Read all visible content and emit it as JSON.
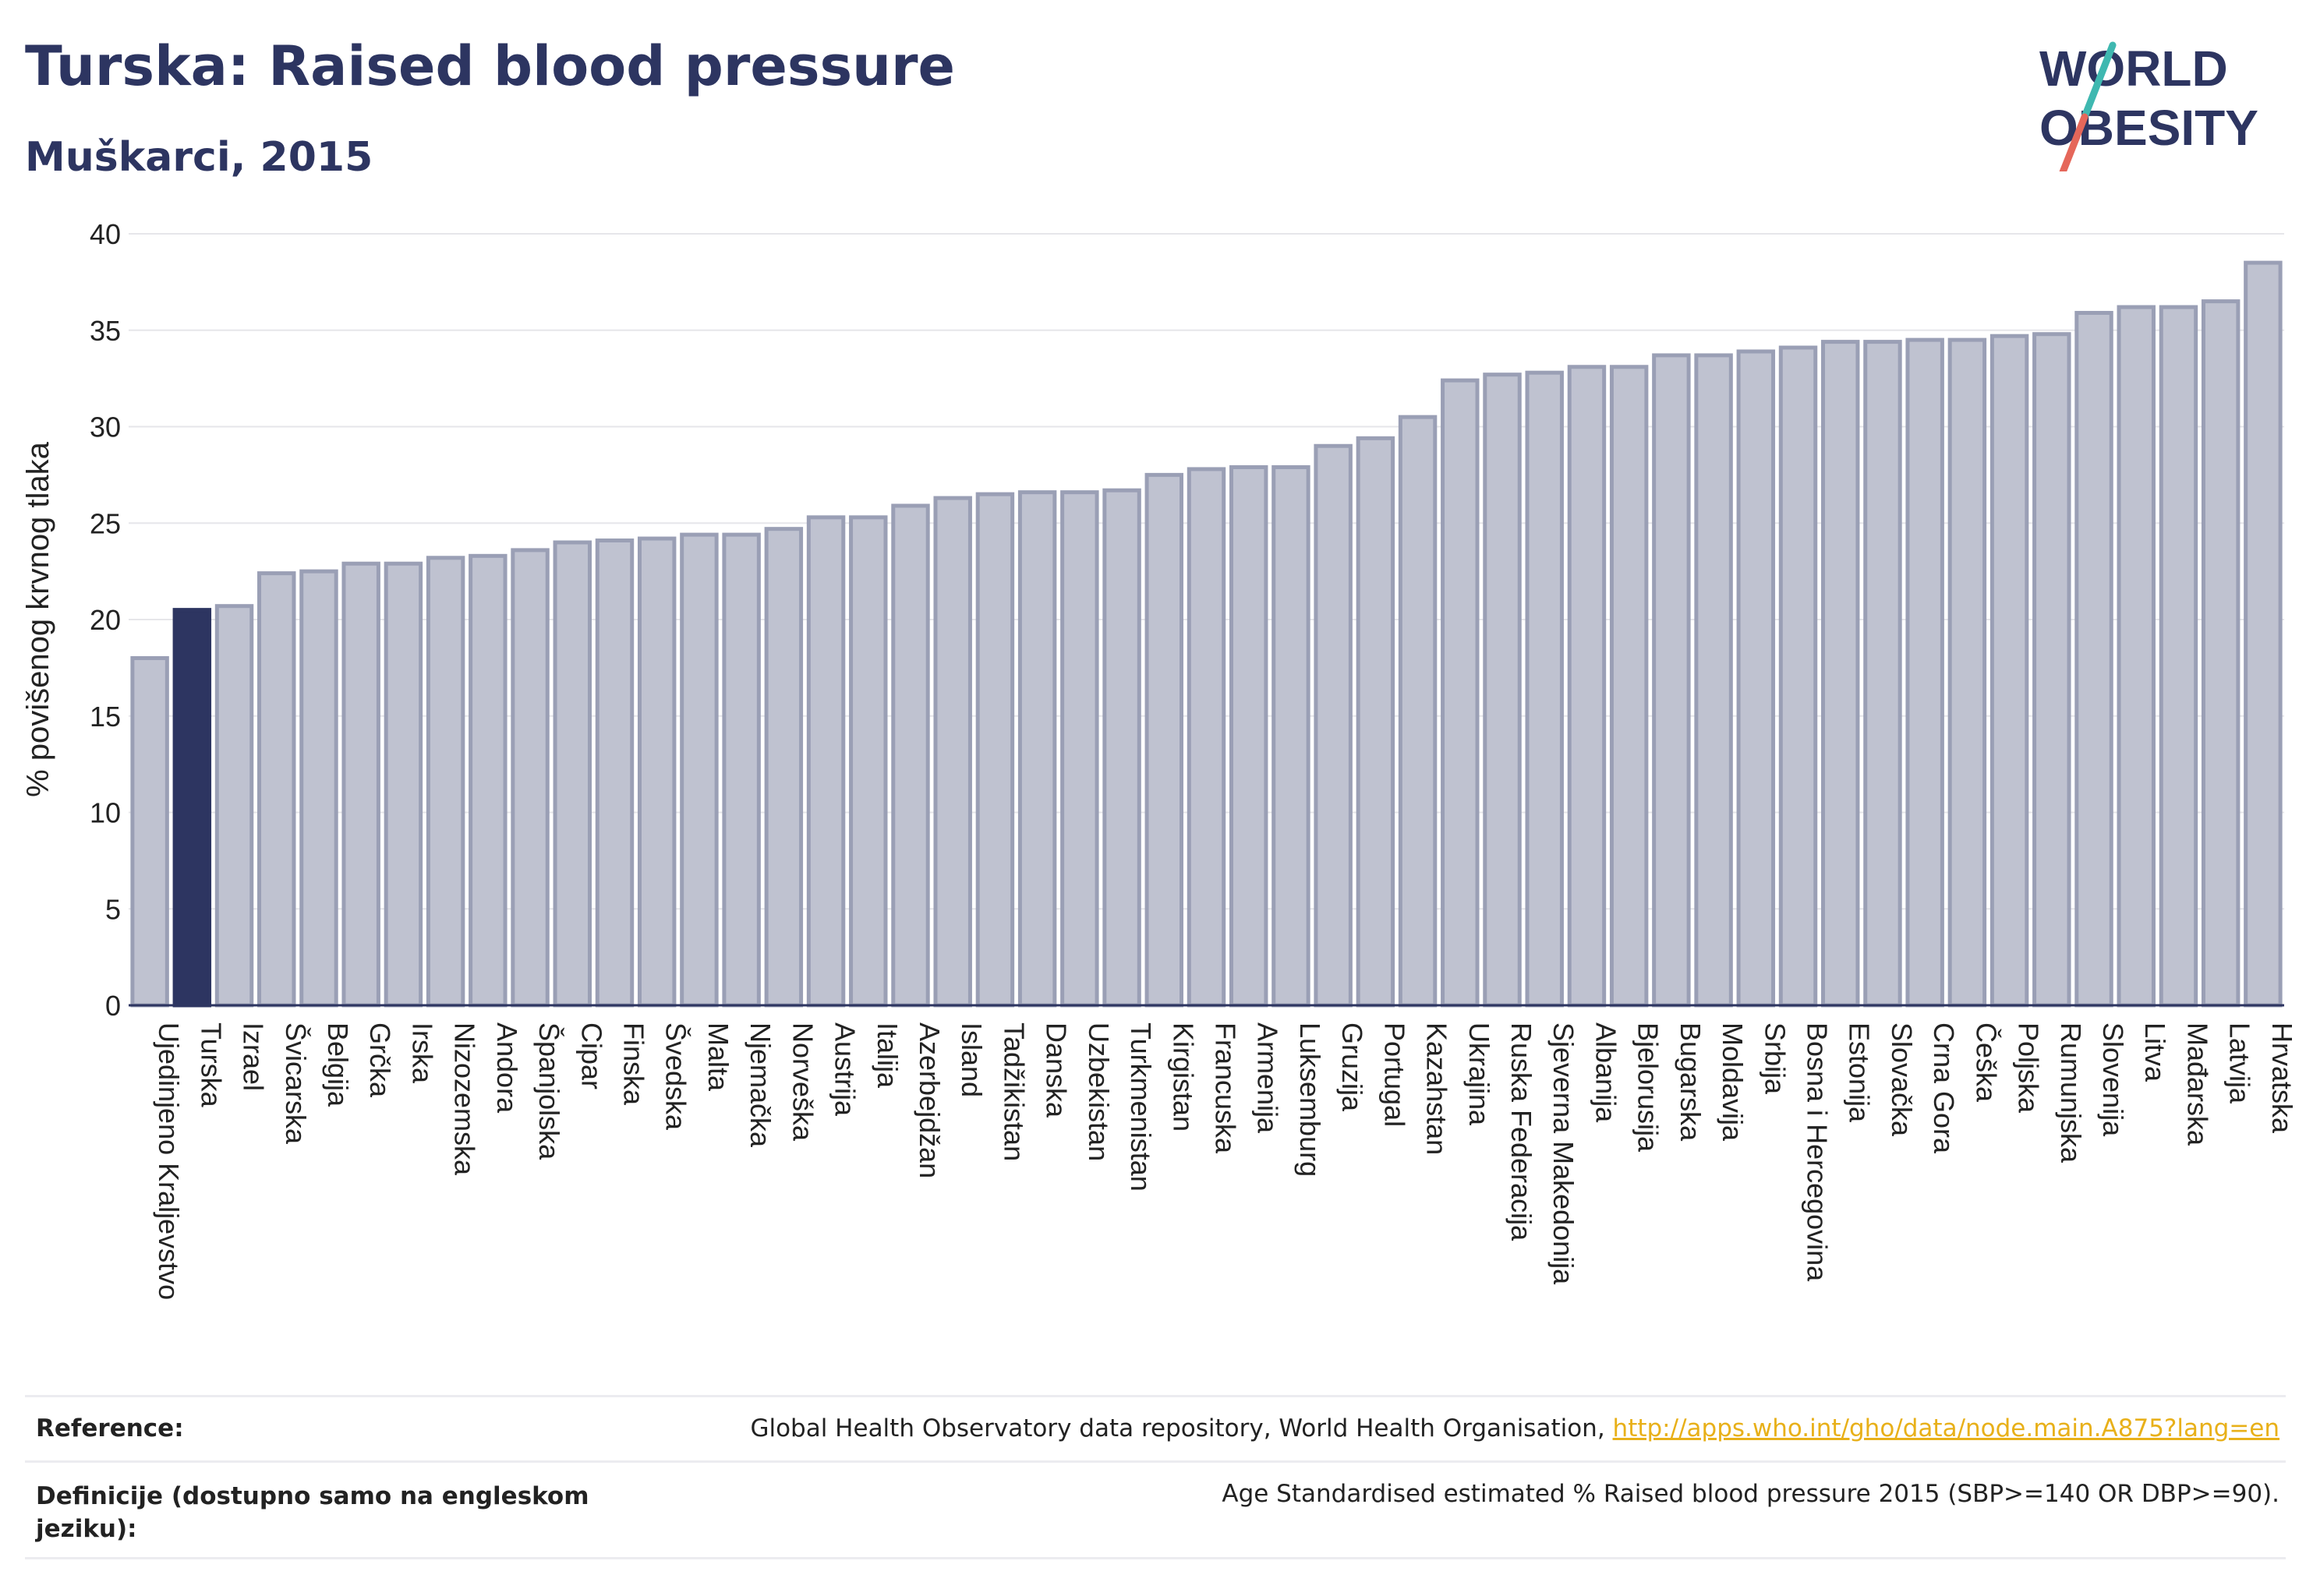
{
  "header": {
    "title": "Turska: Raised blood pressure",
    "subtitle": "Muškarci, 2015"
  },
  "logo": {
    "line1": "WORLD",
    "line2": "OBESITY"
  },
  "colors": {
    "highlight": "#2d3561",
    "bar_fill": "#bfc2d0",
    "bar_stroke": "#9a9fb5",
    "text": "#2d3561",
    "link": "#e8b019",
    "logo_slash_teal": "#3fb8b0",
    "logo_slash_red": "#e5675a"
  },
  "chart_data": {
    "type": "bar",
    "ylabel": "% povišenog krvnog tlaka",
    "ylim": [
      0,
      40
    ],
    "yticks": [
      0,
      5,
      10,
      15,
      20,
      25,
      30,
      35,
      40
    ],
    "grid": true,
    "highlight": "Turska",
    "categories": [
      "Ujedinjeno Kraljevstvo",
      "Turska",
      "Izrael",
      "Švicarska",
      "Belgija",
      "Grčka",
      "Irska",
      "Nizozemska",
      "Andora",
      "Španjolska",
      "Cipar",
      "Finska",
      "Švedska",
      "Malta",
      "Njemačka",
      "Norveška",
      "Austrija",
      "Italija",
      "Azerbejdžan",
      "Island",
      "Tadžikistan",
      "Danska",
      "Uzbekistan",
      "Turkmenistan",
      "Kirgistan",
      "Francuska",
      "Armenija",
      "Luksemburg",
      "Gruzija",
      "Portugal",
      "Kazahstan",
      "Ukrajina",
      "Ruska Federacija",
      "Sjeverna Makedonija",
      "Albanija",
      "Bjelorusija",
      "Bugarska",
      "Moldavija",
      "Srbija",
      "Bosna i Hercegovina",
      "Estonija",
      "Slovačka",
      "Crna Gora",
      "Češka",
      "Poljska",
      "Rumunjska",
      "Slovenija",
      "Litva",
      "Mađarska",
      "Latvija",
      "Hrvatska"
    ],
    "values": [
      18.0,
      20.5,
      20.7,
      22.4,
      22.5,
      22.9,
      22.9,
      23.2,
      23.3,
      23.6,
      24.0,
      24.1,
      24.2,
      24.4,
      24.4,
      24.7,
      25.3,
      25.3,
      25.9,
      26.3,
      26.5,
      26.6,
      26.6,
      26.7,
      27.5,
      27.8,
      27.9,
      27.9,
      29.0,
      29.4,
      30.5,
      32.4,
      32.7,
      32.8,
      33.1,
      33.1,
      33.7,
      33.7,
      33.9,
      34.1,
      34.4,
      34.4,
      34.5,
      34.5,
      34.7,
      34.8,
      35.9,
      36.2,
      36.2,
      36.5,
      38.5
    ]
  },
  "footer": {
    "reference_label": "Reference:",
    "reference_text": "Global Health Observatory data repository, World Health Organisation, ",
    "reference_link": "http://apps.who.int/gho/data/node.main.A875?lang=en",
    "definition_label_1": "Definicije (dostupno samo na engleskom",
    "definition_label_2": "jeziku):",
    "definition_text": "Age Standardised estimated % Raised blood pressure 2015 (SBP>=140 OR DBP>=90)."
  }
}
